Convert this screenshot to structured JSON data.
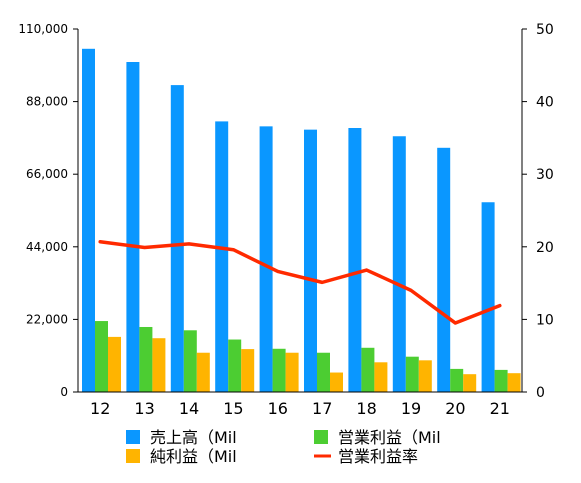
{
  "chart_data": {
    "type": "bar",
    "categories": [
      "12",
      "13",
      "14",
      "15",
      "16",
      "17",
      "18",
      "19",
      "20",
      "21"
    ],
    "series": [
      {
        "name": "売上高（Mil",
        "axis": "left",
        "type": "bar",
        "color": "#0a97ff",
        "values": [
          104000,
          100000,
          93000,
          82000,
          80500,
          79500,
          80000,
          77500,
          74000,
          57500
        ]
      },
      {
        "name": "営業利益（Mil",
        "axis": "left",
        "type": "bar",
        "color": "#4ccd32",
        "values": [
          21500,
          19700,
          18700,
          15900,
          13100,
          11900,
          13400,
          10700,
          7000,
          6700
        ]
      },
      {
        "name": "純利益（Mil",
        "axis": "left",
        "type": "bar",
        "color": "#ffb400",
        "values": [
          16700,
          16300,
          11900,
          13000,
          11900,
          5900,
          9000,
          9600,
          5400,
          5700
        ]
      },
      {
        "name": "営業利益率",
        "axis": "right",
        "type": "line",
        "color": "#ff2a00",
        "values": [
          20.7,
          19.9,
          20.4,
          19.6,
          16.6,
          15.1,
          16.8,
          14.0,
          9.5,
          11.9
        ]
      }
    ],
    "left_axis": {
      "min": 0,
      "max": 110000,
      "ticks": [
        0,
        22000,
        44000,
        66000,
        88000,
        110000
      ],
      "tick_labels": [
        "0",
        "22,000",
        "44,000",
        "66,000",
        "88,000",
        "110,000"
      ]
    },
    "right_axis": {
      "min": 0,
      "max": 50,
      "ticks": [
        0,
        10,
        20,
        30,
        40,
        50
      ],
      "tick_labels": [
        "0",
        "10",
        "20",
        "30",
        "40",
        "50"
      ]
    },
    "legend_position": "bottom",
    "grid": false
  }
}
